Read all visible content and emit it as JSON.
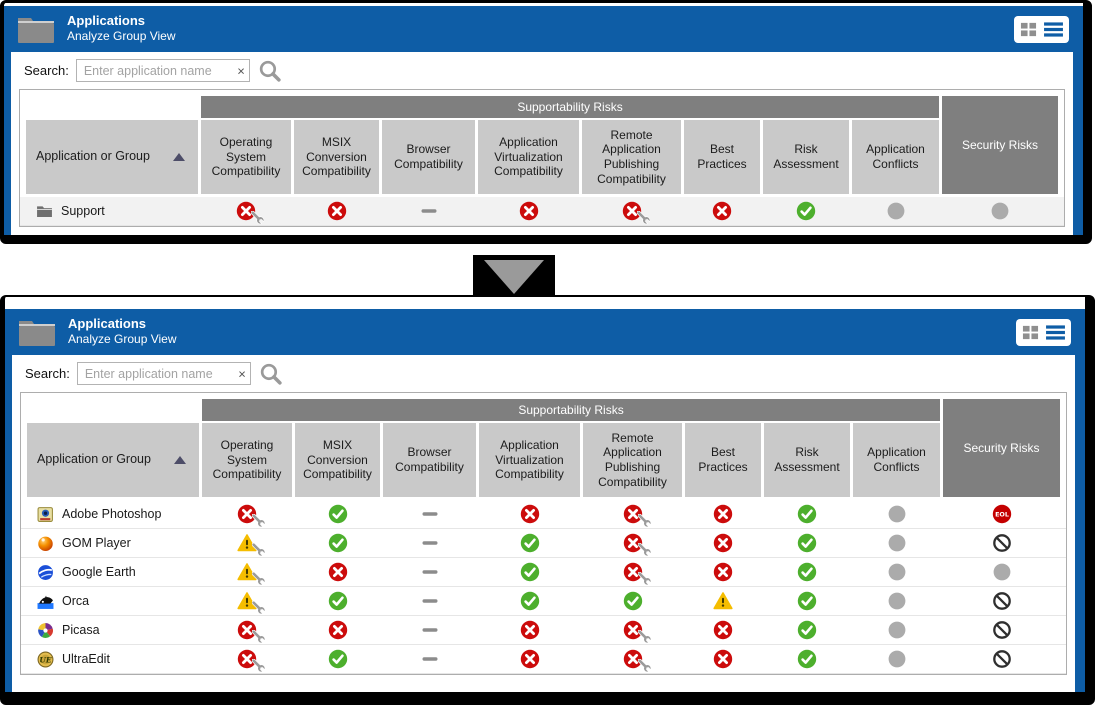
{
  "colors": {
    "header_blue": "#0e5da6",
    "group_gray": "#7f7f7f",
    "header_cell_gray": "#c9c9c9",
    "error_red": "#cc0c0c",
    "ok_green": "#4daf2d",
    "warn_yellow": "#f5bd00",
    "neutral_gray": "#ababab"
  },
  "connector": {
    "icon": "down-arrow-icon"
  },
  "panels": [
    {
      "title": "Applications",
      "subtitle": "Analyze Group View",
      "search": {
        "label": "Search:",
        "placeholder": "Enter application name",
        "clear": "×"
      },
      "view_toggle": {
        "icons": [
          "grid-view-icon",
          "list-view-icon"
        ],
        "active": "list-view"
      },
      "sort": {
        "column": "Application or Group",
        "direction": "asc"
      },
      "table": {
        "first_column_header": "Application or Group",
        "group_header": "Supportability Risks",
        "security_header": "Security Risks",
        "columns": [
          "Operating System Compatibility",
          "MSIX Conversion Compatibility",
          "Browser Compatibility",
          "Application Virtualization Compatibility",
          "Remote Application Publishing Compatibility",
          "Best Practices",
          "Risk Assessment",
          "Application Conflicts"
        ],
        "rows": [
          {
            "name": "Support",
            "icon": "folder",
            "cells": [
              "error-fix",
              "error",
              "na",
              "error",
              "error-fix",
              "error",
              "ok",
              "none",
              "none"
            ]
          }
        ]
      }
    },
    {
      "title": "Applications",
      "subtitle": "Analyze Group View",
      "search": {
        "label": "Search:",
        "placeholder": "Enter application name",
        "clear": "×"
      },
      "view_toggle": {
        "icons": [
          "grid-view-icon",
          "list-view-icon"
        ],
        "active": "list-view"
      },
      "sort": {
        "column": "Application or Group",
        "direction": "asc"
      },
      "table": {
        "first_column_header": "Application or Group",
        "group_header": "Supportability Risks",
        "security_header": "Security Risks",
        "columns": [
          "Operating System Compatibility",
          "MSIX Conversion Compatibility",
          "Browser Compatibility",
          "Application Virtualization Compatibility",
          "Remote Application Publishing Compatibility",
          "Best Practices",
          "Risk Assessment",
          "Application Conflicts"
        ],
        "rows": [
          {
            "name": "Adobe Photoshop",
            "icon": "photoshop",
            "cells": [
              "error-fix",
              "ok",
              "na",
              "error",
              "error-fix",
              "error",
              "ok",
              "none",
              "eol"
            ]
          },
          {
            "name": "GOM Player",
            "icon": "gom",
            "cells": [
              "warn-fix",
              "ok",
              "na",
              "ok",
              "error-fix",
              "error",
              "ok",
              "none",
              "blocked"
            ]
          },
          {
            "name": "Google Earth",
            "icon": "earth",
            "cells": [
              "warn-fix",
              "error",
              "na",
              "ok",
              "error-fix",
              "error",
              "ok",
              "none",
              "none"
            ]
          },
          {
            "name": "Orca",
            "icon": "orca",
            "cells": [
              "warn-fix",
              "ok",
              "na",
              "ok",
              "ok",
              "warn",
              "ok",
              "none",
              "blocked"
            ]
          },
          {
            "name": "Picasa",
            "icon": "picasa",
            "cells": [
              "error-fix",
              "error",
              "na",
              "error",
              "error-fix",
              "error",
              "ok",
              "none",
              "blocked"
            ]
          },
          {
            "name": "UltraEdit",
            "icon": "ultraedit",
            "cells": [
              "error-fix",
              "ok",
              "na",
              "error",
              "error-fix",
              "error",
              "ok",
              "none",
              "blocked"
            ]
          }
        ]
      }
    }
  ]
}
